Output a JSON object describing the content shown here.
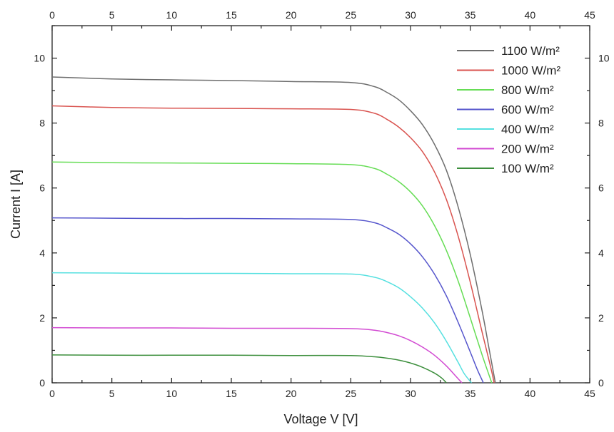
{
  "chart_data": {
    "type": "line",
    "xlabel": "Voltage V [V]",
    "ylabel": "Current I [A]",
    "xlim": [
      0,
      45
    ],
    "ylim": [
      0,
      11
    ],
    "x_ticks": [
      0,
      5,
      10,
      15,
      20,
      25,
      30,
      35,
      40,
      45
    ],
    "y_ticks": [
      0,
      2,
      4,
      6,
      8,
      10
    ],
    "grid": false,
    "legend_position": "top-right",
    "series": [
      {
        "name": "1100 W/m²",
        "color": "#6e6e6e",
        "points": [
          [
            0,
            9.42
          ],
          [
            5,
            9.36
          ],
          [
            10,
            9.33
          ],
          [
            15,
            9.31
          ],
          [
            20,
            9.28
          ],
          [
            25,
            9.25
          ],
          [
            27,
            9.12
          ],
          [
            28,
            8.95
          ],
          [
            29,
            8.72
          ],
          [
            30,
            8.38
          ],
          [
            31,
            7.95
          ],
          [
            32,
            7.35
          ],
          [
            33,
            6.55
          ],
          [
            34,
            5.4
          ],
          [
            35,
            3.95
          ],
          [
            36,
            2.2
          ],
          [
            36.6,
            1.0
          ],
          [
            37.1,
            0
          ]
        ]
      },
      {
        "name": "1000 W/m²",
        "color": "#d9534f",
        "points": [
          [
            0,
            8.53
          ],
          [
            5,
            8.48
          ],
          [
            10,
            8.46
          ],
          [
            15,
            8.45
          ],
          [
            20,
            8.44
          ],
          [
            25,
            8.42
          ],
          [
            27,
            8.3
          ],
          [
            28,
            8.12
          ],
          [
            29,
            7.88
          ],
          [
            30,
            7.55
          ],
          [
            31,
            7.12
          ],
          [
            32,
            6.5
          ],
          [
            33,
            5.65
          ],
          [
            34,
            4.5
          ],
          [
            35,
            3.1
          ],
          [
            36,
            1.55
          ],
          [
            36.7,
            0.5
          ],
          [
            37.0,
            0
          ]
        ]
      },
      {
        "name": "800 W/m²",
        "color": "#66dd55",
        "points": [
          [
            0,
            6.8
          ],
          [
            5,
            6.78
          ],
          [
            10,
            6.77
          ],
          [
            15,
            6.76
          ],
          [
            20,
            6.75
          ],
          [
            25,
            6.72
          ],
          [
            27,
            6.6
          ],
          [
            28,
            6.43
          ],
          [
            29,
            6.2
          ],
          [
            30,
            5.88
          ],
          [
            31,
            5.45
          ],
          [
            32,
            4.85
          ],
          [
            33,
            4.08
          ],
          [
            34,
            3.12
          ],
          [
            35,
            2.0
          ],
          [
            36,
            0.85
          ],
          [
            36.8,
            0
          ]
        ]
      },
      {
        "name": "600 W/m²",
        "color": "#5555cc",
        "points": [
          [
            0,
            5.08
          ],
          [
            5,
            5.07
          ],
          [
            10,
            5.06
          ],
          [
            15,
            5.06
          ],
          [
            20,
            5.05
          ],
          [
            25,
            5.03
          ],
          [
            27,
            4.93
          ],
          [
            28,
            4.78
          ],
          [
            29,
            4.58
          ],
          [
            30,
            4.28
          ],
          [
            31,
            3.88
          ],
          [
            32,
            3.35
          ],
          [
            33,
            2.68
          ],
          [
            34,
            1.85
          ],
          [
            35,
            0.95
          ],
          [
            35.6,
            0.4
          ],
          [
            36.1,
            0
          ]
        ]
      },
      {
        "name": "400 W/m²",
        "color": "#55e0e0",
        "points": [
          [
            0,
            3.39
          ],
          [
            5,
            3.38
          ],
          [
            10,
            3.37
          ],
          [
            15,
            3.37
          ],
          [
            20,
            3.36
          ],
          [
            25,
            3.35
          ],
          [
            27,
            3.25
          ],
          [
            28,
            3.12
          ],
          [
            29,
            2.93
          ],
          [
            30,
            2.65
          ],
          [
            31,
            2.3
          ],
          [
            32,
            1.85
          ],
          [
            33,
            1.28
          ],
          [
            34,
            0.62
          ],
          [
            34.5,
            0.28
          ],
          [
            35.1,
            0
          ]
        ]
      },
      {
        "name": "200 W/m²",
        "color": "#d24ad2",
        "points": [
          [
            0,
            1.7
          ],
          [
            5,
            1.69
          ],
          [
            10,
            1.69
          ],
          [
            15,
            1.68
          ],
          [
            20,
            1.68
          ],
          [
            25,
            1.67
          ],
          [
            27,
            1.62
          ],
          [
            28,
            1.55
          ],
          [
            29,
            1.45
          ],
          [
            30,
            1.3
          ],
          [
            31,
            1.1
          ],
          [
            32,
            0.85
          ],
          [
            33,
            0.52
          ],
          [
            33.8,
            0.2
          ],
          [
            34.3,
            0
          ]
        ]
      },
      {
        "name": "100 W/m²",
        "color": "#3d8f3d",
        "points": [
          [
            0,
            0.86
          ],
          [
            5,
            0.85
          ],
          [
            10,
            0.85
          ],
          [
            15,
            0.85
          ],
          [
            20,
            0.84
          ],
          [
            25,
            0.84
          ],
          [
            27,
            0.8
          ],
          [
            28,
            0.76
          ],
          [
            29,
            0.7
          ],
          [
            30,
            0.61
          ],
          [
            31,
            0.48
          ],
          [
            32,
            0.3
          ],
          [
            32.6,
            0.15
          ],
          [
            33.0,
            0
          ]
        ]
      }
    ]
  }
}
